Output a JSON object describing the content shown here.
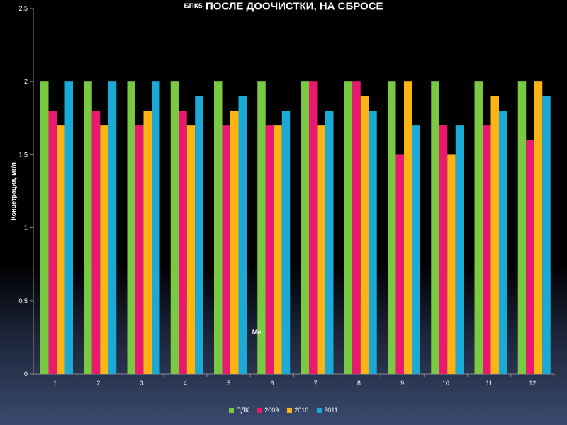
{
  "chart_data": {
    "type": "bar",
    "title_prefix": "БПК5",
    "title": "ПОСЛЕ ДООЧИСТКИ, НА СБРОСЕ",
    "xlabel": "Ме",
    "ylabel": "Концетрация, мг/л",
    "ylim": [
      0,
      2.5
    ],
    "yticks": [
      "0",
      "0.5",
      "1",
      "1.5",
      "2",
      "2.5"
    ],
    "categories": [
      "1",
      "2",
      "3",
      "4",
      "5",
      "6",
      "7",
      "8",
      "9",
      "10",
      "11",
      "12"
    ],
    "grid": false,
    "legend_position": "bottom",
    "series": [
      {
        "name": "ПДК",
        "color": "#7ac943",
        "values": [
          2,
          2,
          2,
          2,
          2,
          2,
          2,
          2,
          2,
          2,
          2,
          2
        ]
      },
      {
        "name": "2009",
        "color": "#e8196e",
        "values": [
          1.8,
          1.8,
          1.7,
          1.8,
          1.7,
          1.7,
          2.0,
          2.0,
          1.5,
          1.7,
          1.7,
          1.6
        ]
      },
      {
        "name": "2010",
        "color": "#fbb413",
        "values": [
          1.7,
          1.7,
          1.8,
          1.7,
          1.8,
          1.7,
          1.7,
          1.9,
          2.0,
          1.5,
          1.9,
          2.0
        ]
      },
      {
        "name": "2011",
        "color": "#1ba9d6",
        "values": [
          2.0,
          2.0,
          2.0,
          1.9,
          1.9,
          1.8,
          1.8,
          1.8,
          1.7,
          1.7,
          1.8,
          1.9
        ]
      }
    ]
  }
}
